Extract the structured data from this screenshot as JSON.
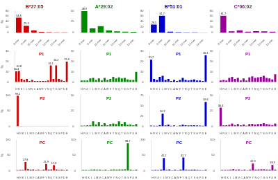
{
  "chart_data": [
    {
      "type": "bar",
      "title": "B*27:05",
      "ylabel": "%",
      "categories": [
        "8-mer",
        "9-mer",
        "10-mer",
        "11-mer",
        "12-mer",
        "13-mer",
        "14-mer"
      ],
      "values": [
        54.8,
        25.1,
        8.0,
        3.5,
        2.0,
        1.5,
        1.0
      ],
      "value_labels": [
        "54.8",
        "25.1",
        null,
        null,
        null,
        null,
        null
      ],
      "data_labels": true,
      "color": "#cc0000",
      "ylim": [
        0,
        80
      ],
      "yticks": [
        0,
        20,
        40,
        60,
        80
      ],
      "grid": false
    },
    {
      "type": "bar",
      "title": "A*29:02",
      "categories": [
        "8-mer",
        "9-mer",
        "10-mer",
        "11-mer",
        "12-mer",
        "13-mer",
        "14-mer"
      ],
      "values": [
        48.9,
        10.0,
        15.0,
        5.0,
        3.0,
        2.5,
        2.0
      ],
      "value_labels": [
        "48.9",
        null,
        null,
        null,
        null,
        null,
        null
      ],
      "data_labels": true,
      "color": "#008800",
      "ylim": [
        0,
        50
      ],
      "yticks": [
        0,
        25,
        50
      ],
      "grid": false
    },
    {
      "type": "bar",
      "title": "B*51:01",
      "categories": [
        "8-mer",
        "9-mer",
        "10-mer",
        "11-mer",
        "12-mer",
        "13-mer",
        "14-mer"
      ],
      "values": [
        29.5,
        61.7,
        4.0,
        2.0,
        1.5,
        1.0,
        0.8
      ],
      "value_labels": [
        "29.5",
        "61.7",
        null,
        null,
        null,
        null,
        null
      ],
      "data_labels": true,
      "color": "#0000cc",
      "ylim": [
        0,
        80
      ],
      "yticks": [
        0,
        20,
        40,
        60,
        80
      ],
      "grid": false
    },
    {
      "type": "bar",
      "title": "C*06:02",
      "categories": [
        "8-mer",
        "9-mer",
        "10-mer",
        "11-mer",
        "12-mer",
        "13-mer",
        "14-mer"
      ],
      "values": [
        61.7,
        5.0,
        8.0,
        4.0,
        6.0,
        5.0,
        4.0
      ],
      "value_labels": [
        "61.7",
        null,
        null,
        null,
        null,
        null,
        null
      ],
      "data_labels": true,
      "color": "#990099",
      "ylim": [
        0,
        80
      ],
      "yticks": [
        0,
        20,
        40,
        60,
        80
      ],
      "grid": false
    },
    {
      "type": "bar",
      "annotations": [
        "P1"
      ],
      "ylabel": "%",
      "categories": [
        "H",
        "R",
        "K",
        "I",
        "L",
        "M",
        "V",
        "C",
        "A",
        "W",
        "F",
        "Y",
        "N",
        "Q",
        "T",
        "S",
        "G",
        "P",
        "D",
        "E"
      ],
      "values": [
        10.4,
        10.8,
        3.0,
        2.0,
        3.0,
        1.0,
        2.0,
        1.0,
        1.0,
        1.0,
        1.0,
        1.0,
        1.5,
        16.1,
        3.0,
        16.2,
        3.0,
        2.0,
        1.0,
        19.9
      ],
      "value_labels": [
        "10.4",
        "10.8",
        null,
        null,
        null,
        null,
        null,
        null,
        null,
        null,
        null,
        null,
        null,
        "16.1",
        null,
        "16.2",
        null,
        null,
        null,
        "19.9"
      ],
      "data_labels": true,
      "color": "#cc0000",
      "ylim": [
        0,
        30
      ],
      "yticks": [
        0,
        10,
        20,
        30
      ],
      "grid": false
    },
    {
      "type": "bar",
      "annotations": [
        "P1"
      ],
      "categories": [
        "H",
        "R",
        "K",
        "I",
        "L",
        "M",
        "V",
        "C",
        "A",
        "W",
        "F",
        "Y",
        "N",
        "Q",
        "T",
        "S",
        "G",
        "P",
        "D",
        "E"
      ],
      "values": [
        1.5,
        1.5,
        1.5,
        3.5,
        4.0,
        2.0,
        3.5,
        1.5,
        4.0,
        2.0,
        3.0,
        5.0,
        3.5,
        4.5,
        3.5,
        4.0,
        2.5,
        2.0,
        2.0,
        10.0
      ],
      "data_labels": false,
      "color": "#008800",
      "ylim": [
        0,
        30
      ],
      "yticks": [
        0,
        10,
        20,
        30
      ],
      "grid": false
    },
    {
      "type": "bar",
      "annotations": [
        "P1"
      ],
      "categories": [
        "H",
        "R",
        "K",
        "I",
        "L",
        "M",
        "V",
        "C",
        "A",
        "W",
        "F",
        "Y",
        "N",
        "Q",
        "T",
        "S",
        "G",
        "P",
        "D",
        "E"
      ],
      "values": [
        21.7,
        3.0,
        2.0,
        5.0,
        6.0,
        2.0,
        3.0,
        1.0,
        2.0,
        1.0,
        2.0,
        4.0,
        2.0,
        1.5,
        2.0,
        2.5,
        1.5,
        1.5,
        1.0,
        26.1
      ],
      "value_labels": [
        "21.7",
        null,
        null,
        null,
        null,
        null,
        null,
        null,
        null,
        null,
        null,
        null,
        null,
        null,
        null,
        null,
        null,
        null,
        null,
        "26.1"
      ],
      "data_labels": true,
      "color": "#0000cc",
      "ylim": [
        0,
        30
      ],
      "yticks": [
        0,
        10,
        20,
        30
      ],
      "grid": false
    },
    {
      "type": "bar",
      "annotations": [
        "P1"
      ],
      "categories": [
        "H",
        "R",
        "K",
        "I",
        "L",
        "M",
        "V",
        "C",
        "A",
        "W",
        "F",
        "Y",
        "N",
        "Q",
        "T",
        "S",
        "G",
        "P",
        "D",
        "E"
      ],
      "values": [
        1.5,
        2.0,
        1.5,
        4.0,
        5.0,
        3.0,
        4.0,
        1.5,
        3.5,
        1.5,
        4.5,
        5.5,
        4.0,
        4.5,
        5.0,
        6.0,
        4.0,
        3.5,
        2.5,
        7.5
      ],
      "data_labels": false,
      "color": "#990099",
      "ylim": [
        0,
        30
      ],
      "yticks": [
        0,
        10,
        20,
        30
      ],
      "grid": false
    },
    {
      "type": "bar",
      "annotations": [
        "P2"
      ],
      "ylabel": "%",
      "categories": [
        "H",
        "R",
        "K",
        "I",
        "L",
        "M",
        "V",
        "C",
        "A",
        "W",
        "F",
        "Y",
        "N",
        "Q",
        "T",
        "S",
        "G",
        "P",
        "D",
        "E"
      ],
      "values": [
        99.2,
        0.3,
        0.1,
        0.1,
        0.1,
        0.1,
        0.1,
        0.1,
        0.1,
        0.1,
        0.1,
        0.1,
        0.0,
        0.0,
        0.0,
        0.0,
        0.0,
        0.0,
        0.0,
        0.1
      ],
      "value_labels": [
        "99.2",
        null,
        null,
        null,
        null,
        null,
        null,
        null,
        null,
        null,
        null,
        null,
        null,
        null,
        null,
        null,
        null,
        null,
        null,
        null
      ],
      "data_labels": true,
      "color": "#cc0000",
      "ylim": [
        0,
        100
      ],
      "yticks": [
        0,
        50,
        100
      ],
      "grid": false
    },
    {
      "type": "bar",
      "annotations": [
        "P2"
      ],
      "categories": [
        "H",
        "R",
        "K",
        "I",
        "L",
        "M",
        "V",
        "C",
        "A",
        "W",
        "F",
        "Y",
        "N",
        "Q",
        "T",
        "S",
        "G",
        "P",
        "D",
        "E"
      ],
      "values": [
        1.0,
        1.0,
        1.5,
        2.0,
        8.0,
        3.0,
        7.0,
        2.0,
        5.0,
        1.5,
        3.5,
        4.5,
        3.5,
        8.0,
        4.0,
        7.0,
        2.5,
        3.0,
        1.5,
        3.5
      ],
      "data_labels": false,
      "color": "#008800",
      "ylim": [
        0,
        50
      ],
      "yticks": [
        0,
        25,
        50
      ],
      "grid": false
    },
    {
      "type": "bar",
      "annotations": [
        "P2"
      ],
      "categories": [
        "H",
        "R",
        "K",
        "I",
        "L",
        "M",
        "V",
        "C",
        "A",
        "W",
        "F",
        "Y",
        "N",
        "Q",
        "T",
        "S",
        "G",
        "P",
        "D",
        "E"
      ],
      "values": [
        1.5,
        1.0,
        1.0,
        3.0,
        30.7,
        2.0,
        4.0,
        1.0,
        2.0,
        0.5,
        2.0,
        4.0,
        2.5,
        2.0,
        2.5,
        2.5,
        2.0,
        1.5,
        1.0,
        59.6
      ],
      "value_labels": [
        null,
        null,
        null,
        null,
        "30.7",
        null,
        null,
        null,
        null,
        null,
        null,
        null,
        null,
        null,
        null,
        null,
        null,
        null,
        null,
        "59.6"
      ],
      "data_labels": true,
      "color": "#0000cc",
      "ylim": [
        0,
        75
      ],
      "yticks": [
        0,
        25,
        50,
        75
      ],
      "grid": false
    },
    {
      "type": "bar",
      "annotations": [
        "P2"
      ],
      "categories": [
        "H",
        "R",
        "K",
        "I",
        "L",
        "M",
        "V",
        "C",
        "A",
        "W",
        "F",
        "Y",
        "N",
        "Q",
        "T",
        "S",
        "G",
        "P",
        "D",
        "E"
      ],
      "values": [
        30.4,
        1.5,
        1.5,
        2.5,
        4.5,
        2.0,
        3.5,
        1.5,
        3.0,
        1.0,
        3.5,
        4.0,
        3.0,
        3.5,
        4.0,
        5.0,
        3.5,
        3.0,
        2.0,
        4.5
      ],
      "value_labels": [
        "30.4",
        null,
        null,
        null,
        null,
        null,
        null,
        null,
        null,
        null,
        null,
        null,
        null,
        null,
        null,
        null,
        null,
        null,
        null,
        null
      ],
      "data_labels": true,
      "color": "#990099",
      "ylim": [
        0,
        50
      ],
      "yticks": [
        0,
        25,
        50
      ],
      "grid": false
    },
    {
      "type": "bar",
      "annotations": [
        "PC"
      ],
      "ylabel": "%",
      "categories": [
        "H",
        "R",
        "K",
        "I",
        "L",
        "M",
        "V",
        "C",
        "A",
        "W",
        "F",
        "Y",
        "N",
        "Q",
        "T",
        "S",
        "G",
        "P",
        "D",
        "E"
      ],
      "values": [
        1.5,
        2.0,
        2.0,
        27.8,
        5.0,
        3.0,
        4.0,
        1.5,
        3.0,
        1.0,
        3.5,
        21.9,
        3.5,
        4.0,
        17.8,
        4.0,
        2.0,
        3.0,
        1.5,
        2.5
      ],
      "value_labels": [
        null,
        null,
        null,
        "27.8",
        null,
        null,
        null,
        null,
        null,
        null,
        null,
        "21.9",
        null,
        null,
        "17.8",
        null,
        null,
        null,
        null,
        null
      ],
      "data_labels": true,
      "color": "#cc0000",
      "ylim": [
        0,
        100
      ],
      "yticks": [
        0,
        50,
        100
      ],
      "grid": false
    },
    {
      "type": "bar",
      "annotations": [
        "PC"
      ],
      "categories": [
        "H",
        "R",
        "K",
        "I",
        "L",
        "M",
        "V",
        "C",
        "A",
        "W",
        "F",
        "Y",
        "N",
        "Q",
        "T",
        "S",
        "G",
        "P",
        "D",
        "E"
      ],
      "values": [
        2.0,
        2.0,
        1.5,
        3.0,
        4.0,
        2.5,
        3.5,
        1.5,
        3.0,
        1.0,
        3.0,
        4.0,
        3.5,
        4.0,
        4.0,
        4.5,
        88.7,
        3.0,
        1.5,
        3.5
      ],
      "value_labels": [
        null,
        null,
        null,
        null,
        null,
        null,
        null,
        null,
        null,
        null,
        null,
        null,
        null,
        null,
        null,
        null,
        "88.7",
        null,
        null,
        null
      ],
      "data_labels": true,
      "color": "#008800",
      "ylim": [
        0,
        100
      ],
      "yticks": [
        0,
        50,
        100
      ],
      "grid": false
    },
    {
      "type": "bar",
      "annotations": [
        "PC"
      ],
      "categories": [
        "H",
        "R",
        "K",
        "I",
        "L",
        "M",
        "V",
        "C",
        "A",
        "W",
        "F",
        "Y",
        "N",
        "Q",
        "T",
        "S",
        "G",
        "P",
        "D",
        "E"
      ],
      "values": [
        1.5,
        2.0,
        1.5,
        3.0,
        41.2,
        2.0,
        4.0,
        1.0,
        2.5,
        0.8,
        3.0,
        42.7,
        2.5,
        2.0,
        2.5,
        3.0,
        2.0,
        1.5,
        1.0,
        2.5
      ],
      "value_labels": [
        null,
        null,
        null,
        null,
        "41.2",
        null,
        null,
        null,
        null,
        null,
        null,
        "42.7",
        null,
        null,
        null,
        null,
        null,
        null,
        null,
        null
      ],
      "data_labels": true,
      "color": "#0000cc",
      "ylim": [
        0,
        100
      ],
      "yticks": [
        0,
        50,
        100
      ],
      "grid": false
    },
    {
      "type": "bar",
      "annotations": [
        "PC"
      ],
      "categories": [
        "H",
        "R",
        "K",
        "I",
        "L",
        "M",
        "V",
        "C",
        "A",
        "W",
        "F",
        "Y",
        "N",
        "Q",
        "T",
        "S",
        "G",
        "P",
        "D",
        "E"
      ],
      "values": [
        2.0,
        2.0,
        2.0,
        3.5,
        5.0,
        2.5,
        4.0,
        1.5,
        3.0,
        1.0,
        3.5,
        22.9,
        3.5,
        4.0,
        4.5,
        4.5,
        3.5,
        3.5,
        18.3,
        3.0
      ],
      "value_labels": [
        null,
        null,
        null,
        null,
        null,
        null,
        null,
        null,
        null,
        null,
        null,
        "22.9",
        null,
        null,
        null,
        null,
        null,
        null,
        "18.3",
        null
      ],
      "data_labels": true,
      "color": "#990099",
      "ylim": [
        0,
        100
      ],
      "yticks": [
        0,
        50,
        100
      ],
      "grid": false
    }
  ]
}
